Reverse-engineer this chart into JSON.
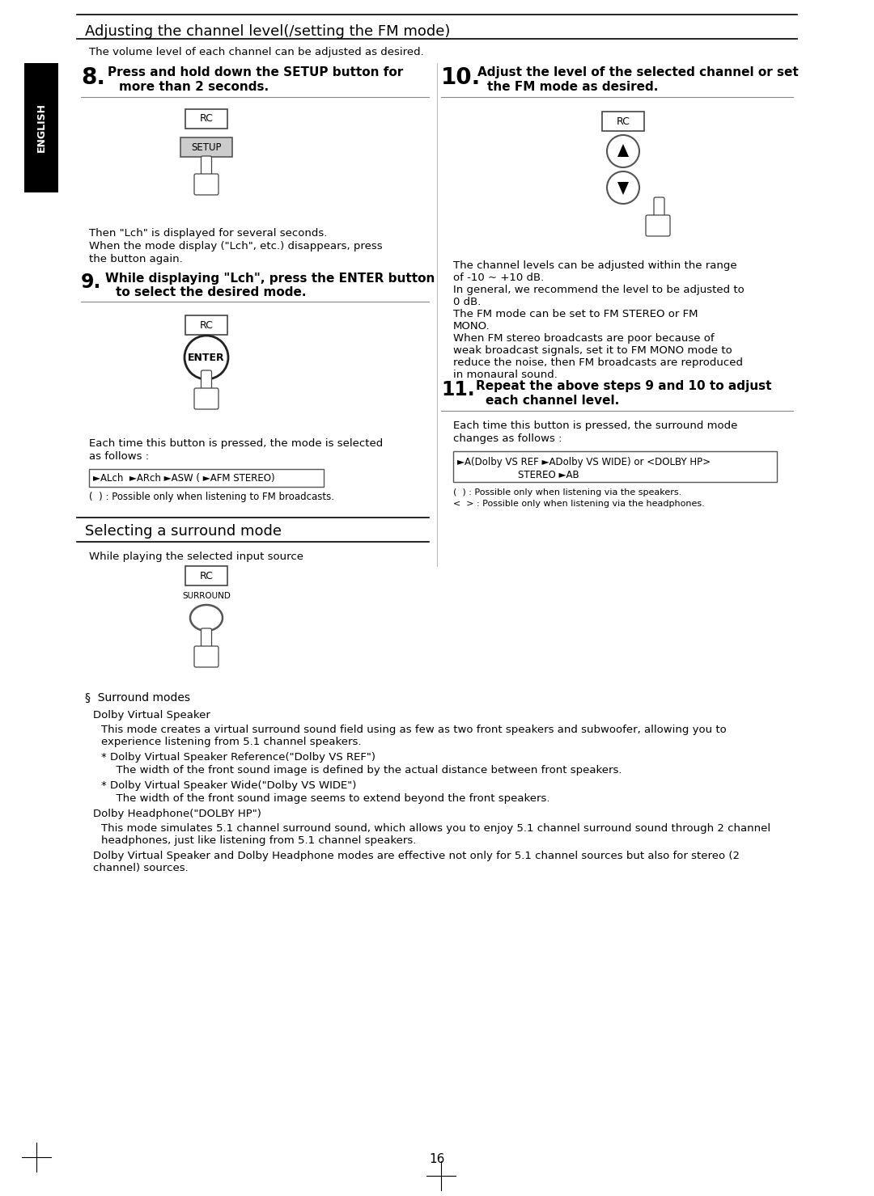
{
  "bg_color": "#ffffff",
  "page_number": "16",
  "title": "Adjusting the channel level(/setting the FM mode)",
  "section2_title": "Selecting a surround mode",
  "english_label": "ENGLISH",
  "intro_text": "The volume level of each channel can be adjusted as desired.",
  "step8_text_line1": "Press and hold down the SETUP button for",
  "step8_text_line2": "more than 2 seconds.",
  "step9_text_line1": "While displaying \"Lch\", press the ENTER button",
  "step9_text_line2": "to select the desired mode.",
  "step10_text_line1": "Adjust the level of the selected channel or set",
  "step10_text_line2": "the FM mode as desired.",
  "step11_text_line1": "Repeat the above steps 9 and 10 to adjust",
  "step11_text_line2": "each channel level.",
  "step8_note_line1": "Then \"Lch\" is displayed for several seconds.",
  "step8_note_line2": "When the mode display (\"Lch\", etc.) disappears, press",
  "step8_note_line3": "the button again.",
  "step9_note_line1": "Each time this button is pressed, the mode is selected",
  "step9_note_line2": "as follows :",
  "step9_sequence": "►ALch  ►ARch ►ASW ( ►AFM STEREO)",
  "step9_footnote": "(  ) : Possible only when listening to FM broadcasts.",
  "step10_note": "The channel levels can be adjusted within the range\nof -10 ~ +10 dB.\nIn general, we recommend the level to be adjusted to\n0 dB.\nThe FM mode can be set to FM STEREO or FM\nMONO.\nWhen FM stereo broadcasts are poor because of\nweak broadcast signals, set it to FM MONO mode to\nreduce the noise, then FM broadcasts are reproduced\nin monaural sound.",
  "section2_intro": "While playing the selected input source",
  "section2_note_line1": "Each time this button is pressed, the surround mode",
  "section2_note_line2": "changes as follows :",
  "section2_seq_line1": "►A(Dolby VS REF ►ADolby VS WIDE) or <DOLBY HP>",
  "section2_seq_line2": "STEREO ►AB",
  "section2_footnote1": "(  ) : Possible only when listening via the speakers.",
  "section2_footnote2": "<  > : Possible only when listening via the headphones.",
  "surround_section_title": "§  Surround modes",
  "dvs_title": "Dolby Virtual Speaker",
  "dvs_text1": "This mode creates a virtual surround sound field using as few as two front speakers and subwoofer, allowing you to",
  "dvs_text2": "experience listening from 5.1 channel speakers.",
  "dvs_ref_title": "* Dolby Virtual Speaker Reference(\"Dolby VS REF\")",
  "dvs_ref_text": "  The width of the front sound image is defined by the actual distance between front speakers.",
  "dvs_wide_title": "* Dolby Virtual Speaker Wide(\"Dolby VS WIDE\")",
  "dvs_wide_text": "  The width of the front sound image seems to extend beyond the front speakers.",
  "dh_title": "Dolby Headphone(\"DOLBY HP\")",
  "dh_text1": "This mode simulates 5.1 channel surround sound, which allows you to enjoy 5.1 channel surround sound through 2 channel",
  "dh_text2": "headphones, just like listening from 5.1 channel speakers.",
  "dh_text3": "Dolby Virtual Speaker and Dolby Headphone modes are effective not only for 5.1 channel sources but also for stereo (2",
  "dh_text4": "channel) sources."
}
